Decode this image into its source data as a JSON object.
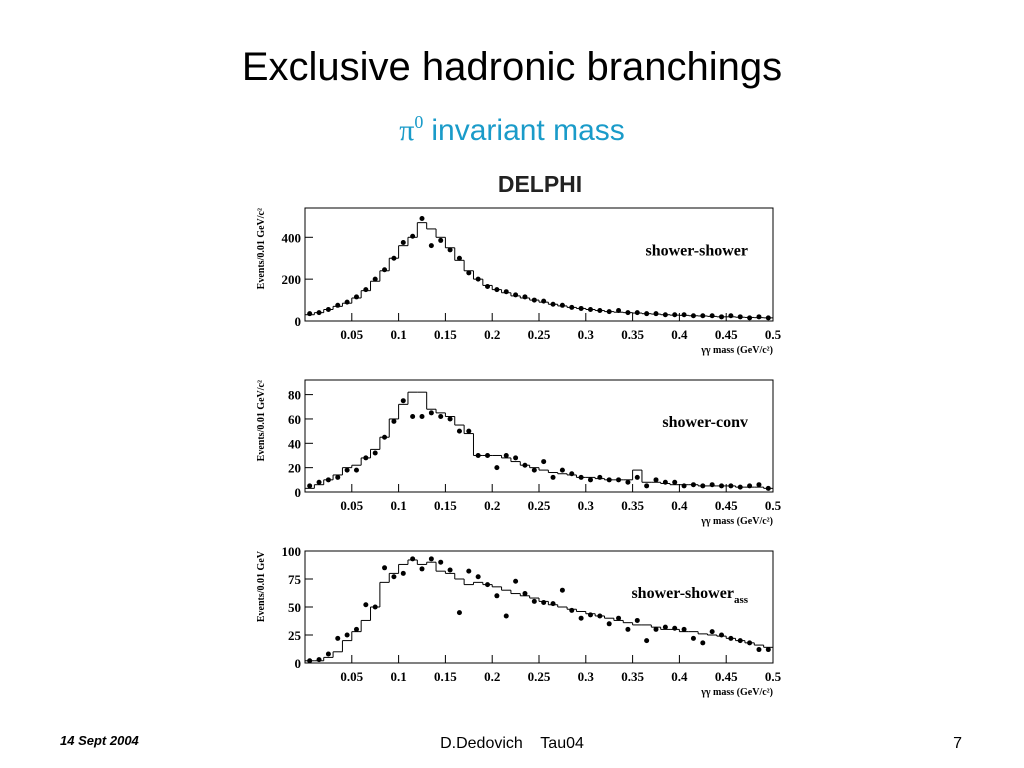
{
  "slide": {
    "title": "Exclusive hadronic branchings",
    "subtitle_symbol": "π",
    "subtitle_sup": "0",
    "subtitle": "invariant mass",
    "experiment": "DELPHI",
    "footer_date": "14 Sept 2004",
    "footer_center": "D.Dedovich    Tau04",
    "page": "7"
  },
  "chart_data": [
    {
      "type": "histogram",
      "ylabel": "Events/0.01 GeV/c²",
      "xlabel": "γγ mass (GeV/c²)",
      "annotation": "shower-shower",
      "xlim": [
        0,
        0.5
      ],
      "ylim": [
        0,
        540
      ],
      "xticks": [
        0.05,
        0.1,
        0.15,
        0.2,
        0.25,
        0.3,
        0.35,
        0.4,
        0.45,
        0.5
      ],
      "yticks": [
        0,
        200,
        400
      ],
      "bins": [
        0,
        0.01,
        0.02,
        0.03,
        0.04,
        0.05,
        0.06,
        0.07,
        0.08,
        0.09,
        0.1,
        0.11,
        0.12,
        0.13,
        0.14,
        0.15,
        0.16,
        0.17,
        0.18,
        0.19,
        0.2,
        0.21,
        0.22,
        0.23,
        0.24,
        0.25,
        0.26,
        0.27,
        0.28,
        0.29,
        0.3,
        0.31,
        0.32,
        0.33,
        0.34,
        0.35,
        0.36,
        0.37,
        0.38,
        0.39,
        0.4,
        0.41,
        0.42,
        0.43,
        0.44,
        0.45,
        0.46,
        0.47,
        0.48,
        0.49,
        0.5
      ],
      "series": [
        {
          "marker": "points",
          "color": "#000000",
          "values": [
            35,
            40,
            55,
            75,
            90,
            115,
            150,
            200,
            245,
            300,
            375,
            405,
            490,
            360,
            385,
            340,
            300,
            230,
            200,
            165,
            150,
            140,
            125,
            115,
            100,
            95,
            80,
            75,
            65,
            60,
            55,
            50,
            45,
            50,
            40,
            40,
            35,
            35,
            30,
            30,
            30,
            25,
            25,
            25,
            20,
            25,
            20,
            15,
            20,
            15
          ]
        },
        {
          "marker": "step",
          "color": "#000000",
          "values": [
            30,
            40,
            55,
            70,
            85,
            110,
            145,
            190,
            240,
            300,
            360,
            400,
            470,
            440,
            400,
            350,
            290,
            240,
            200,
            170,
            150,
            135,
            120,
            110,
            100,
            90,
            80,
            72,
            65,
            60,
            55,
            50,
            45,
            42,
            40,
            38,
            35,
            33,
            30,
            28,
            27,
            25,
            24,
            22,
            20,
            20,
            18,
            17,
            16,
            15
          ]
        }
      ]
    },
    {
      "type": "histogram",
      "ylabel": "Events/0.01 GeV/c²",
      "xlabel": "γγ mass (GeV/c²)",
      "annotation": "shower-conv",
      "xlim": [
        0,
        0.5
      ],
      "ylim": [
        0,
        92
      ],
      "xticks": [
        0.05,
        0.1,
        0.15,
        0.2,
        0.25,
        0.3,
        0.35,
        0.4,
        0.45,
        0.5
      ],
      "yticks": [
        0,
        20,
        40,
        60,
        80
      ],
      "bins": [
        0,
        0.01,
        0.02,
        0.03,
        0.04,
        0.05,
        0.06,
        0.07,
        0.08,
        0.09,
        0.1,
        0.11,
        0.12,
        0.13,
        0.14,
        0.15,
        0.16,
        0.17,
        0.18,
        0.19,
        0.2,
        0.21,
        0.22,
        0.23,
        0.24,
        0.25,
        0.26,
        0.27,
        0.28,
        0.29,
        0.3,
        0.31,
        0.32,
        0.33,
        0.34,
        0.35,
        0.36,
        0.37,
        0.38,
        0.39,
        0.4,
        0.41,
        0.42,
        0.43,
        0.44,
        0.45,
        0.46,
        0.47,
        0.48,
        0.49,
        0.5
      ],
      "series": [
        {
          "marker": "points",
          "color": "#000000",
          "values": [
            5,
            8,
            10,
            12,
            18,
            18,
            28,
            32,
            45,
            58,
            75,
            62,
            62,
            65,
            62,
            60,
            50,
            50,
            30,
            30,
            20,
            30,
            28,
            22,
            18,
            25,
            12,
            18,
            15,
            12,
            10,
            12,
            10,
            10,
            8,
            12,
            5,
            10,
            8,
            8,
            5,
            6,
            5,
            6,
            5,
            5,
            4,
            5,
            6,
            3
          ]
        },
        {
          "marker": "step",
          "color": "#000000",
          "values": [
            3,
            6,
            10,
            14,
            20,
            22,
            28,
            35,
            45,
            60,
            72,
            82,
            82,
            68,
            65,
            62,
            55,
            48,
            30,
            30,
            30,
            28,
            25,
            22,
            20,
            18,
            16,
            15,
            14,
            12,
            12,
            11,
            10,
            10,
            10,
            18,
            8,
            8,
            7,
            6,
            6,
            6,
            5,
            5,
            5,
            5,
            4,
            4,
            4,
            3
          ]
        }
      ]
    },
    {
      "type": "histogram",
      "ylabel": "Events/0.01 GeV",
      "xlabel": "γγ mass (GeV/c²)",
      "annotation": "shower-shower",
      "annotation_subscript": "ass",
      "xlim": [
        0,
        0.5
      ],
      "ylim": [
        0,
        100
      ],
      "xticks": [
        0.05,
        0.1,
        0.15,
        0.2,
        0.25,
        0.3,
        0.35,
        0.4,
        0.45,
        0.5
      ],
      "yticks": [
        0,
        25,
        50,
        75,
        100
      ],
      "bins": [
        0,
        0.01,
        0.02,
        0.03,
        0.04,
        0.05,
        0.06,
        0.07,
        0.08,
        0.09,
        0.1,
        0.11,
        0.12,
        0.13,
        0.14,
        0.15,
        0.16,
        0.17,
        0.18,
        0.19,
        0.2,
        0.21,
        0.22,
        0.23,
        0.24,
        0.25,
        0.26,
        0.27,
        0.28,
        0.29,
        0.3,
        0.31,
        0.32,
        0.33,
        0.34,
        0.35,
        0.36,
        0.37,
        0.38,
        0.39,
        0.4,
        0.41,
        0.42,
        0.43,
        0.44,
        0.45,
        0.46,
        0.47,
        0.48,
        0.49,
        0.5
      ],
      "series": [
        {
          "marker": "points",
          "color": "#000000",
          "values": [
            2,
            3,
            8,
            22,
            25,
            30,
            52,
            50,
            85,
            77,
            80,
            93,
            84,
            93,
            90,
            83,
            45,
            82,
            77,
            70,
            60,
            42,
            73,
            62,
            55,
            54,
            53,
            65,
            47,
            40,
            43,
            42,
            35,
            40,
            30,
            38,
            20,
            30,
            32,
            31,
            30,
            22,
            18,
            28,
            25,
            22,
            20,
            18,
            12,
            12
          ]
        },
        {
          "marker": "step",
          "color": "#000000",
          "values": [
            2,
            2,
            5,
            10,
            20,
            28,
            38,
            50,
            72,
            80,
            88,
            92,
            88,
            90,
            82,
            80,
            75,
            70,
            72,
            70,
            68,
            65,
            62,
            60,
            58,
            55,
            52,
            50,
            48,
            46,
            44,
            42,
            40,
            38,
            36,
            34,
            34,
            32,
            30,
            30,
            28,
            28,
            26,
            25,
            24,
            22,
            20,
            18,
            16,
            14
          ]
        }
      ]
    }
  ]
}
